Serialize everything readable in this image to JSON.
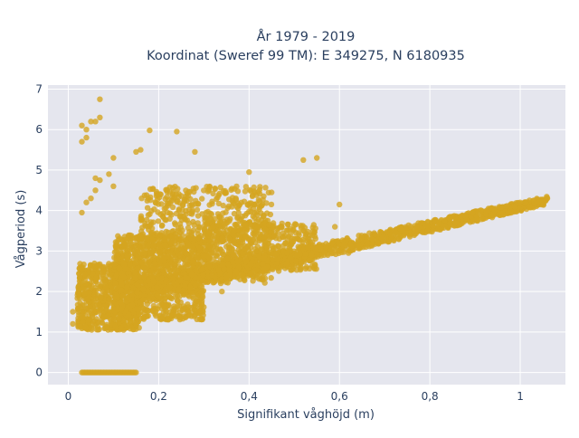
{
  "chart_data": {
    "type": "scatter",
    "title_line1": "År 1979 - 2019",
    "title_line2": "Koordinat (Sweref 99 TM): E 349275, N 6180935",
    "xlabel": "Signifikant våghöjd (m)",
    "ylabel": "Vågperiod (s)",
    "xlim": [
      -0.045,
      1.1
    ],
    "ylim": [
      -0.3,
      7.1
    ],
    "x_ticks": [
      0,
      0.2,
      0.4,
      0.6,
      0.8,
      1
    ],
    "x_tick_labels": [
      "0",
      "0,2",
      "0,4",
      "0,6",
      "0,8",
      "1"
    ],
    "y_ticks": [
      0,
      1,
      2,
      3,
      4,
      5,
      6,
      7
    ],
    "y_tick_labels": [
      "0",
      "1",
      "2",
      "3",
      "4",
      "5",
      "6",
      "7"
    ],
    "grid": true,
    "marker_color": "#d4a520",
    "background_color": "#e5e6ee",
    "clusters": [
      {
        "x_range": [
          0.02,
          0.16
        ],
        "y_range": [
          1.05,
          2.7
        ],
        "count": 700
      },
      {
        "x_range": [
          0.1,
          0.3
        ],
        "y_range": [
          1.3,
          3.4
        ],
        "count": 900
      },
      {
        "x_range": [
          0.16,
          0.45
        ],
        "y_range": [
          2.2,
          4.6
        ],
        "count": 700
      },
      {
        "x_range": [
          0.3,
          0.55
        ],
        "y_range": [
          2.5,
          3.7
        ],
        "count": 500
      }
    ],
    "trend_band": {
      "x_start": 0.15,
      "x_end": 1.06,
      "y_start": 2.0,
      "y_end": 4.25,
      "spread": 0.25,
      "count": 1200
    },
    "points": [
      {
        "x": 0.07,
        "y": 6.75
      },
      {
        "x": 0.03,
        "y": 6.1
      },
      {
        "x": 0.04,
        "y": 6.0
      },
      {
        "x": 0.05,
        "y": 6.2
      },
      {
        "x": 0.06,
        "y": 6.2
      },
      {
        "x": 0.03,
        "y": 5.7
      },
      {
        "x": 0.04,
        "y": 5.8
      },
      {
        "x": 0.07,
        "y": 6.3
      },
      {
        "x": 0.18,
        "y": 5.98
      },
      {
        "x": 0.24,
        "y": 5.95
      },
      {
        "x": 0.16,
        "y": 5.5
      },
      {
        "x": 0.15,
        "y": 5.45
      },
      {
        "x": 0.28,
        "y": 5.45
      },
      {
        "x": 0.55,
        "y": 5.3
      },
      {
        "x": 0.52,
        "y": 5.25
      },
      {
        "x": 0.4,
        "y": 4.95
      },
      {
        "x": 0.1,
        "y": 5.3
      },
      {
        "x": 0.09,
        "y": 4.9
      },
      {
        "x": 0.06,
        "y": 4.8
      },
      {
        "x": 0.07,
        "y": 4.75
      },
      {
        "x": 0.05,
        "y": 4.3
      },
      {
        "x": 0.04,
        "y": 4.2
      },
      {
        "x": 0.03,
        "y": 3.95
      },
      {
        "x": 0.06,
        "y": 4.5
      },
      {
        "x": 0.1,
        "y": 4.6
      },
      {
        "x": 0.6,
        "y": 4.15
      },
      {
        "x": 0.59,
        "y": 3.6
      },
      {
        "x": 0.53,
        "y": 3.3
      },
      {
        "x": 0.62,
        "y": 2.95
      },
      {
        "x": 0.34,
        "y": 2.0
      },
      {
        "x": 0.38,
        "y": 2.3
      },
      {
        "x": 0.01,
        "y": 1.5
      },
      {
        "x": 0.01,
        "y": 1.2
      },
      {
        "x": 1.06,
        "y": 4.3
      },
      {
        "x": 1.03,
        "y": 4.25
      },
      {
        "x": 1.0,
        "y": 4.2
      }
    ],
    "zero_points_x_range": [
      0.03,
      0.15
    ]
  }
}
